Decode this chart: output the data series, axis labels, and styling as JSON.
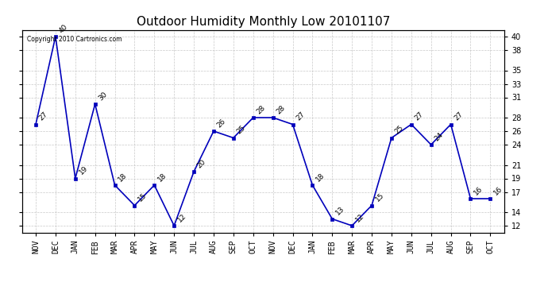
{
  "title": "Outdoor Humidity Monthly Low 20101107",
  "copyright_text": "Copyright 2010 Cartronics.com",
  "months": [
    "NOV",
    "DEC",
    "JAN",
    "FEB",
    "MAR",
    "APR",
    "MAY",
    "JUN",
    "JUL",
    "AUG",
    "SEP",
    "OCT",
    "NOV",
    "DEC",
    "JAN",
    "FEB",
    "MAR",
    "APR",
    "MAY",
    "JUN",
    "JUL",
    "AUG",
    "SEP",
    "OCT"
  ],
  "values": [
    27,
    40,
    19,
    30,
    18,
    15,
    18,
    12,
    20,
    26,
    25,
    28,
    28,
    27,
    18,
    13,
    12,
    15,
    25,
    27,
    24,
    27,
    16,
    16
  ],
  "yticks": [
    12,
    14,
    17,
    19,
    21,
    24,
    26,
    28,
    31,
    33,
    35,
    38,
    40
  ],
  "ylim": [
    11,
    41
  ],
  "line_color": "#0000bb",
  "marker_color": "#0000bb",
  "bg_color": "#ffffff",
  "grid_color": "#bbbbbb",
  "title_fontsize": 11,
  "tick_fontsize": 7,
  "annotation_fontsize": 6.5
}
